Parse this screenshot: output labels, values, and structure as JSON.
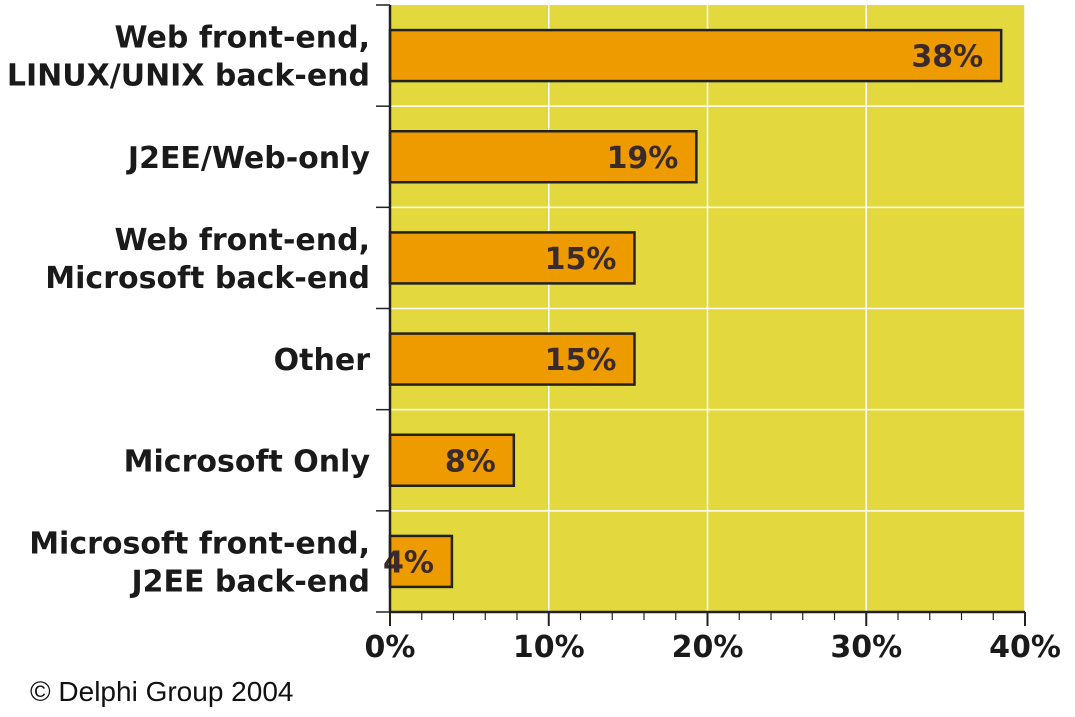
{
  "chart_data": {
    "type": "bar",
    "orientation": "horizontal",
    "categories": [
      [
        "Web front-end,",
        "LINUX/UNIX back-end"
      ],
      [
        "J2EE/Web-only"
      ],
      [
        "Web front-end,",
        "Microsoft back-end"
      ],
      [
        "Other"
      ],
      [
        "Microsoft Only"
      ],
      [
        "Microsoft front-end,",
        "J2EE back-end"
      ]
    ],
    "values": [
      38.5,
      19.3,
      15.4,
      15.4,
      7.8,
      3.9
    ],
    "data_labels": [
      "38%",
      "19%",
      "15%",
      "15%",
      "8%",
      "4%"
    ],
    "x_ticks": [
      "0%",
      "10%",
      "20%",
      "30%",
      "40%"
    ],
    "xlim": [
      0,
      40
    ],
    "grid": true,
    "colors": {
      "plot_background": "#e3d93f",
      "bar_fill": "#ee9b00",
      "bar_border": "#222222",
      "grid": "#ffffff"
    }
  },
  "footer": {
    "copyright": "© Delphi Group 2004"
  }
}
